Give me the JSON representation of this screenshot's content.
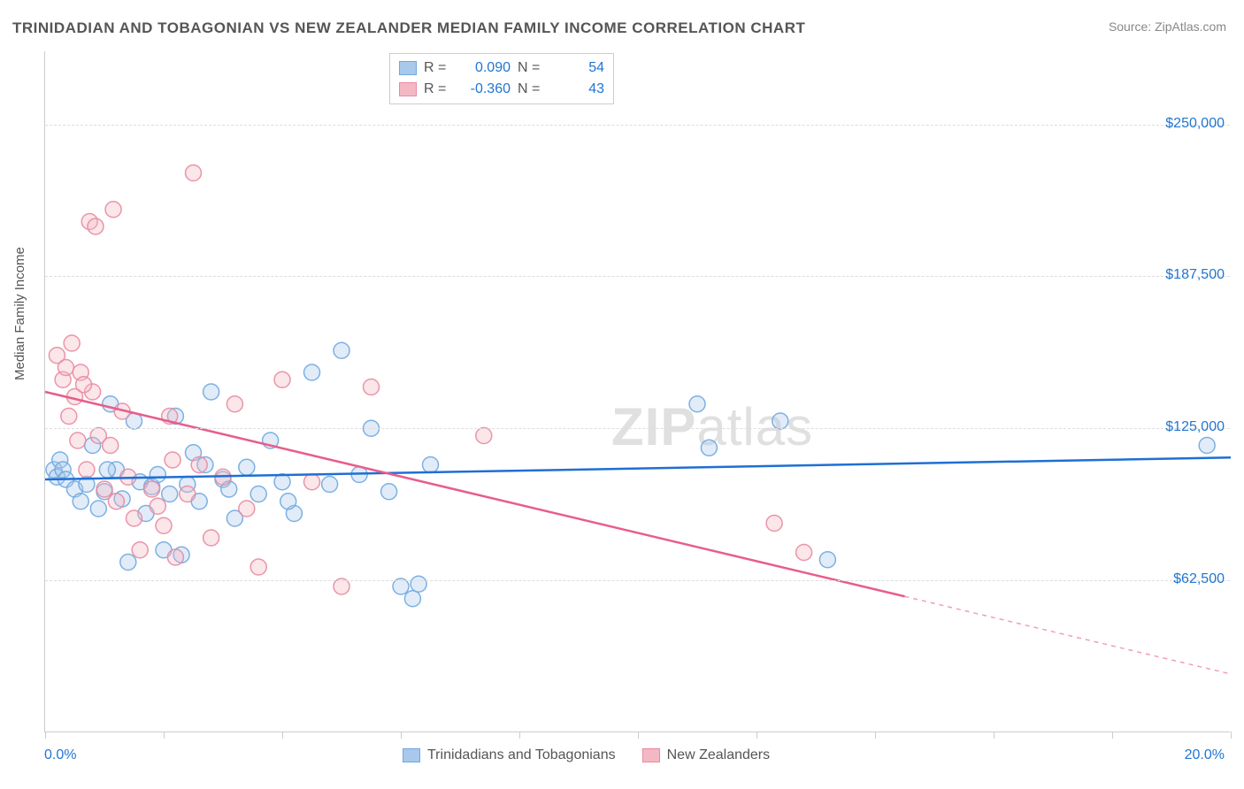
{
  "title": "TRINIDADIAN AND TOBAGONIAN VS NEW ZEALANDER MEDIAN FAMILY INCOME CORRELATION CHART",
  "source": "Source: ZipAtlas.com",
  "watermark_zip": "ZIP",
  "watermark_atlas": "atlas",
  "ylabel": "Median Family Income",
  "chart": {
    "type": "scatter",
    "xlim": [
      0,
      20
    ],
    "ylim": [
      0,
      280000
    ],
    "x_tick_positions": [
      0,
      2,
      4,
      6,
      8,
      10,
      12,
      14,
      16,
      18,
      20
    ],
    "y_ticks": [
      {
        "value": 62500,
        "label": "$62,500"
      },
      {
        "value": 125000,
        "label": "$125,000"
      },
      {
        "value": 187500,
        "label": "$187,500"
      },
      {
        "value": 250000,
        "label": "$250,000"
      }
    ],
    "x_left_label": "0.0%",
    "x_right_label": "20.0%",
    "background_color": "#ffffff",
    "grid_color": "#dddddd",
    "axis_color": "#cccccc",
    "tick_label_color": "#2176d2",
    "marker_radius": 9,
    "marker_fill_opacity": 0.35,
    "marker_stroke_opacity": 0.9,
    "line_width": 2.5,
    "series": [
      {
        "name": "Trinidadians and Tobagonians",
        "color_fill": "#a8c8ec",
        "color_stroke": "#6fa8e0",
        "line_color": "#1f6fd4",
        "R": "0.090",
        "N": "54",
        "trend": {
          "x1": 0,
          "y1": 104000,
          "x2": 20,
          "y2": 113000,
          "solid_to_x": 20
        },
        "points": [
          [
            0.15,
            108000
          ],
          [
            0.2,
            105000
          ],
          [
            0.25,
            112000
          ],
          [
            0.3,
            108000
          ],
          [
            0.35,
            104000
          ],
          [
            0.5,
            100000
          ],
          [
            0.6,
            95000
          ],
          [
            0.7,
            102000
          ],
          [
            0.8,
            118000
          ],
          [
            0.9,
            92000
          ],
          [
            1.0,
            99000
          ],
          [
            1.1,
            135000
          ],
          [
            1.2,
            108000
          ],
          [
            1.3,
            96000
          ],
          [
            1.4,
            70000
          ],
          [
            1.5,
            128000
          ],
          [
            1.6,
            103000
          ],
          [
            1.7,
            90000
          ],
          [
            1.8,
            101000
          ],
          [
            1.9,
            106000
          ],
          [
            2.0,
            75000
          ],
          [
            2.1,
            98000
          ],
          [
            2.2,
            130000
          ],
          [
            2.3,
            73000
          ],
          [
            2.4,
            102000
          ],
          [
            2.5,
            115000
          ],
          [
            2.6,
            95000
          ],
          [
            2.8,
            140000
          ],
          [
            3.0,
            104000
          ],
          [
            3.2,
            88000
          ],
          [
            3.4,
            109000
          ],
          [
            3.6,
            98000
          ],
          [
            3.8,
            120000
          ],
          [
            4.0,
            103000
          ],
          [
            4.2,
            90000
          ],
          [
            4.5,
            148000
          ],
          [
            4.8,
            102000
          ],
          [
            5.0,
            157000
          ],
          [
            5.3,
            106000
          ],
          [
            5.5,
            125000
          ],
          [
            5.8,
            99000
          ],
          [
            6.0,
            60000
          ],
          [
            6.2,
            55000
          ],
          [
            6.3,
            61000
          ],
          [
            6.5,
            110000
          ],
          [
            11.0,
            135000
          ],
          [
            11.2,
            117000
          ],
          [
            12.4,
            128000
          ],
          [
            13.2,
            71000
          ],
          [
            19.6,
            118000
          ],
          [
            2.7,
            110000
          ],
          [
            3.1,
            100000
          ],
          [
            4.1,
            95000
          ],
          [
            1.05,
            108000
          ]
        ]
      },
      {
        "name": "New Zealanders",
        "color_fill": "#f4b8c4",
        "color_stroke": "#e88aa0",
        "line_color": "#e85d8a",
        "R": "-0.360",
        "N": "43",
        "trend": {
          "x1": 0,
          "y1": 140000,
          "x2": 20,
          "y2": 24000,
          "solid_to_x": 14.5
        },
        "points": [
          [
            0.2,
            155000
          ],
          [
            0.3,
            145000
          ],
          [
            0.35,
            150000
          ],
          [
            0.4,
            130000
          ],
          [
            0.45,
            160000
          ],
          [
            0.5,
            138000
          ],
          [
            0.55,
            120000
          ],
          [
            0.6,
            148000
          ],
          [
            0.7,
            108000
          ],
          [
            0.75,
            210000
          ],
          [
            0.8,
            140000
          ],
          [
            0.85,
            208000
          ],
          [
            0.9,
            122000
          ],
          [
            1.0,
            100000
          ],
          [
            1.1,
            118000
          ],
          [
            1.2,
            95000
          ],
          [
            1.3,
            132000
          ],
          [
            1.4,
            105000
          ],
          [
            1.5,
            88000
          ],
          [
            1.6,
            75000
          ],
          [
            1.8,
            100000
          ],
          [
            1.9,
            93000
          ],
          [
            2.0,
            85000
          ],
          [
            2.1,
            130000
          ],
          [
            2.2,
            72000
          ],
          [
            2.4,
            98000
          ],
          [
            2.5,
            230000
          ],
          [
            2.6,
            110000
          ],
          [
            2.8,
            80000
          ],
          [
            3.0,
            105000
          ],
          [
            3.2,
            135000
          ],
          [
            3.4,
            92000
          ],
          [
            3.6,
            68000
          ],
          [
            4.0,
            145000
          ],
          [
            4.5,
            103000
          ],
          [
            5.0,
            60000
          ],
          [
            5.5,
            142000
          ],
          [
            7.4,
            122000
          ],
          [
            12.3,
            86000
          ],
          [
            12.8,
            74000
          ],
          [
            1.15,
            215000
          ],
          [
            0.65,
            143000
          ],
          [
            2.15,
            112000
          ]
        ]
      }
    ]
  },
  "legend_top": {
    "r_label": "R =",
    "n_label": "N ="
  },
  "legend_bottom_labels": [
    "Trinidadians and Tobagonians",
    "New Zealanders"
  ]
}
